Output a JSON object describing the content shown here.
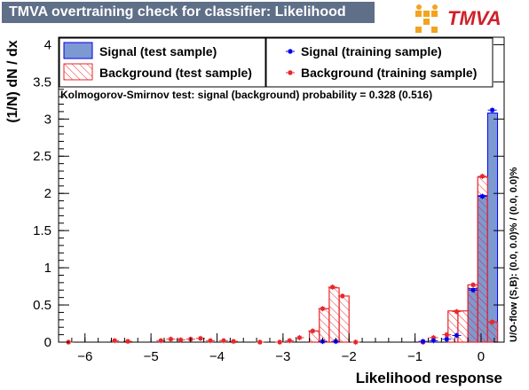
{
  "title": "TMVA overtraining check for classifier: Likelihood",
  "logo_text": "TMVA",
  "overflow_note": "U/O-flow (S,B): (0.0, 0.0)% / (0.0, 0.0)%",
  "ks_text": "Kolmogorov-Smirnov test: signal (background) probability = 0.328 (0.516)",
  "colors": {
    "signal_fill": "#7d99d1",
    "signal_line": "#0000ee",
    "background": "#e8262a",
    "title_bg": "#5f6f88"
  },
  "chart_data": {
    "type": "bar",
    "xlabel": "Likelihood response",
    "ylabel": "(1/N) dN / dx",
    "xlim": [
      -6.4,
      0.35
    ],
    "ylim": [
      0,
      4.1
    ],
    "xticks": [
      -6,
      -5,
      -4,
      -3,
      -2,
      -1,
      0
    ],
    "yticks": [
      0,
      0.5,
      1,
      1.5,
      2,
      2.5,
      3,
      3.5,
      4
    ],
    "ytick_labels": [
      "0",
      "0.5",
      "1",
      "1.5",
      "2",
      "2.5",
      "3",
      "3.5",
      "4"
    ],
    "legend": [
      {
        "label": "Signal (test sample)",
        "kind": "signal-fill"
      },
      {
        "label": "Signal (training sample)",
        "kind": "signal-marker"
      },
      {
        "label": "Background (test sample)",
        "kind": "background-hatch"
      },
      {
        "label": "Background (training sample)",
        "kind": "background-marker"
      }
    ],
    "bin_edges": [
      -2.6,
      -2.45,
      -2.3,
      -2.15,
      -2.0,
      -1.85
    ],
    "signal_test": [
      {
        "x0": -0.2,
        "x1": -0.05,
        "y": 0.72
      },
      {
        "x0": -0.05,
        "x1": 0.1,
        "y": 1.97
      },
      {
        "x0": 0.1,
        "x1": 0.25,
        "y": 3.08
      }
    ],
    "background_test": [
      {
        "x0": -2.6,
        "x1": -2.45,
        "y": 0.15
      },
      {
        "x0": -2.45,
        "x1": -2.3,
        "y": 0.45
      },
      {
        "x0": -2.3,
        "x1": -2.15,
        "y": 0.73
      },
      {
        "x0": -2.15,
        "x1": -2.0,
        "y": 0.62
      },
      {
        "x0": -2.0,
        "x1": -1.85,
        "y": 0.0
      },
      {
        "x0": -0.5,
        "x1": -0.35,
        "y": 0.42
      },
      {
        "x0": -0.35,
        "x1": -0.2,
        "y": 0.42
      },
      {
        "x0": -0.2,
        "x1": -0.05,
        "y": 0.77
      },
      {
        "x0": -0.05,
        "x1": 0.1,
        "y": 2.22
      },
      {
        "x0": 0.1,
        "x1": 0.25,
        "y": 0.27
      }
    ],
    "signal_train": [
      {
        "x": -2.4,
        "y": 0.01
      },
      {
        "x": -2.2,
        "y": 0.01
      },
      {
        "x": -0.88,
        "y": 0.01
      },
      {
        "x": -0.72,
        "y": 0.02
      },
      {
        "x": -0.52,
        "y": 0.04
      },
      {
        "x": -0.37,
        "y": 0.09
      },
      {
        "x": -0.12,
        "y": 0.7
      },
      {
        "x": 0.02,
        "y": 1.96
      },
      {
        "x": 0.17,
        "y": 3.12
      }
    ],
    "background_train": [
      {
        "x": -6.25,
        "y": 0.0
      },
      {
        "x": -5.55,
        "y": 0.02
      },
      {
        "x": -5.35,
        "y": 0.01
      },
      {
        "x": -4.85,
        "y": 0.02
      },
      {
        "x": -4.7,
        "y": 0.04
      },
      {
        "x": -4.55,
        "y": 0.03
      },
      {
        "x": -4.4,
        "y": 0.04
      },
      {
        "x": -4.25,
        "y": 0.05
      },
      {
        "x": -4.1,
        "y": 0.02
      },
      {
        "x": -3.9,
        "y": 0.02
      },
      {
        "x": -3.75,
        "y": 0.01
      },
      {
        "x": -3.35,
        "y": 0.0
      },
      {
        "x": -3.05,
        "y": 0.0
      },
      {
        "x": -2.9,
        "y": 0.02
      },
      {
        "x": -2.75,
        "y": 0.06
      },
      {
        "x": -2.55,
        "y": 0.15
      },
      {
        "x": -2.4,
        "y": 0.45
      },
      {
        "x": -2.25,
        "y": 0.74
      },
      {
        "x": -2.1,
        "y": 0.62
      },
      {
        "x": -1.9,
        "y": 0.0
      },
      {
        "x": -0.88,
        "y": 0.0
      },
      {
        "x": -0.72,
        "y": 0.06
      },
      {
        "x": -0.52,
        "y": 0.1
      },
      {
        "x": -0.37,
        "y": 0.41
      },
      {
        "x": -0.12,
        "y": 0.77
      },
      {
        "x": 0.02,
        "y": 2.23
      },
      {
        "x": 0.17,
        "y": 0.27
      }
    ]
  }
}
